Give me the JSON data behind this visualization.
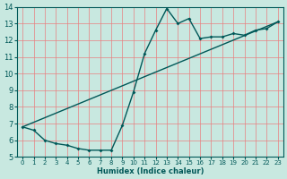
{
  "xlabel": "Humidex (Indice chaleur)",
  "bg_color": "#c8e8e0",
  "grid_color": "#e88080",
  "line_color": "#005858",
  "xlim": [
    -0.5,
    23.5
  ],
  "ylim": [
    5,
    14
  ],
  "xticks": [
    0,
    1,
    2,
    3,
    4,
    5,
    6,
    7,
    8,
    9,
    10,
    11,
    12,
    13,
    14,
    15,
    16,
    17,
    18,
    19,
    20,
    21,
    22,
    23
  ],
  "yticks": [
    5,
    6,
    7,
    8,
    9,
    10,
    11,
    12,
    13,
    14
  ],
  "curve1_x": [
    0,
    1,
    2,
    3,
    4,
    5,
    6,
    7,
    8,
    9,
    10,
    11,
    12,
    13,
    14,
    15,
    16,
    17,
    18,
    19,
    20,
    21,
    22,
    23
  ],
  "curve1_y": [
    6.8,
    6.6,
    6.0,
    5.8,
    5.7,
    5.5,
    5.4,
    5.4,
    5.4,
    6.9,
    8.9,
    11.2,
    12.6,
    13.9,
    13.0,
    13.3,
    12.1,
    12.2,
    12.2,
    12.4,
    12.3,
    12.6,
    12.7,
    13.1
  ],
  "trend_x": [
    0,
    23
  ],
  "trend_y": [
    6.8,
    13.1
  ],
  "xlabel_fontsize": 6.0,
  "xlabel_fontweight": "bold",
  "tick_fontsize_x": 5.0,
  "tick_fontsize_y": 6.0,
  "linewidth": 1.0,
  "markersize": 2.0
}
